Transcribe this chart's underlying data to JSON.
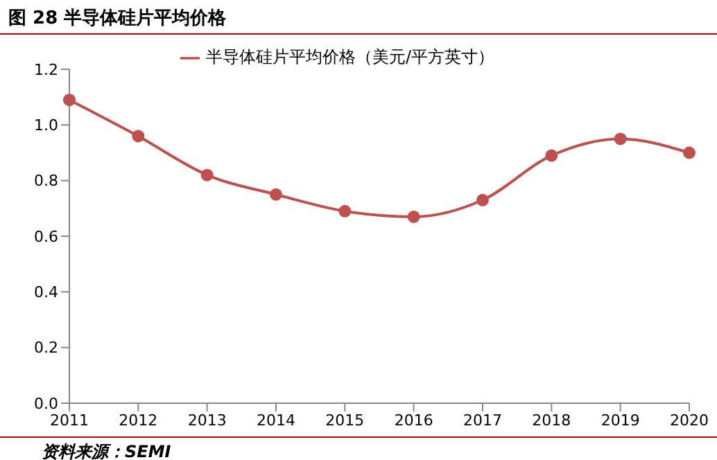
{
  "chart_data": {
    "type": "line",
    "title": "图 28 半导体硅片平均价格",
    "categories": [
      "2011",
      "2012",
      "2013",
      "2014",
      "2015",
      "2016",
      "2017",
      "2018",
      "2019",
      "2020"
    ],
    "series": [
      {
        "name": "半导体硅片平均价格（美元/平方英寸）",
        "color": "#c0504d",
        "values": [
          1.09,
          0.96,
          0.82,
          0.75,
          0.69,
          0.67,
          0.73,
          0.89,
          0.95,
          0.9
        ]
      }
    ],
    "ylim": [
      0,
      1.2
    ],
    "yticks": [
      {
        "value": 0,
        "label": "0.0"
      },
      0.2,
      0.4,
      0.6,
      0.8,
      {
        "value": 1,
        "label": "1.0"
      },
      1.2
    ],
    "grid": false,
    "legend": "top",
    "marker": "circle",
    "line_style": "solid",
    "annotations": [
      "资料来源：SEMI"
    ]
  }
}
